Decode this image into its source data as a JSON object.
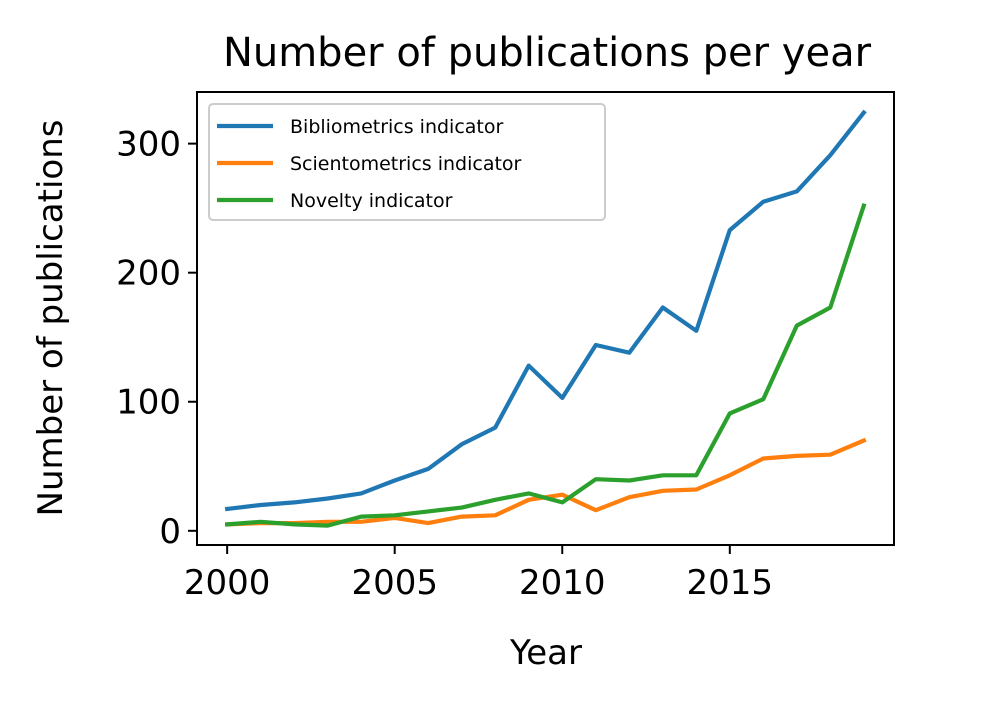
{
  "chart_data": {
    "type": "line",
    "title": "Number of publications per year",
    "xlabel": "Year",
    "ylabel": "Number of publications",
    "x": [
      2000,
      2001,
      2002,
      2003,
      2004,
      2005,
      2006,
      2007,
      2008,
      2009,
      2010,
      2011,
      2012,
      2013,
      2014,
      2015,
      2016,
      2017,
      2018,
      2019
    ],
    "xlim": [
      1999.1,
      2019.9
    ],
    "ylim": [
      -11,
      340
    ],
    "xticks": [
      2000,
      2005,
      2010,
      2015
    ],
    "yticks": [
      0,
      100,
      200,
      300
    ],
    "grid": false,
    "legend_position": "top-left",
    "series": [
      {
        "name": "Bibliometrics indicator",
        "color": "#1f77b4",
        "values": [
          17,
          20,
          22,
          25,
          29,
          39,
          48,
          67,
          80,
          128,
          103,
          144,
          138,
          173,
          155,
          233,
          255,
          263,
          291,
          324
        ]
      },
      {
        "name": "Scientometrics indicator",
        "color": "#ff7f0e",
        "values": [
          5,
          6,
          6,
          7,
          7,
          10,
          6,
          11,
          12,
          24,
          28,
          16,
          26,
          31,
          32,
          43,
          56,
          58,
          59,
          70
        ]
      },
      {
        "name": "Novelty indicator",
        "color": "#2ca02c",
        "values": [
          5,
          7,
          5,
          4,
          11,
          12,
          15,
          18,
          24,
          29,
          22,
          40,
          39,
          43,
          43,
          91,
          102,
          159,
          173,
          252
        ]
      }
    ]
  }
}
